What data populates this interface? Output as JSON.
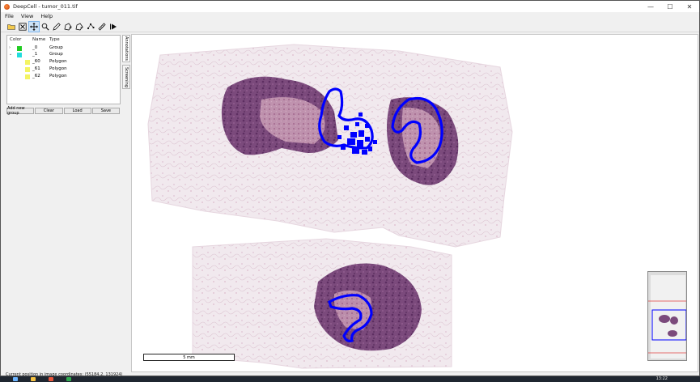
{
  "window": {
    "title": "DeepCell - tumor_011.tif",
    "controls": {
      "minimize": "—",
      "maximize": "☐",
      "close": "✕"
    }
  },
  "menu": [
    "File",
    "View",
    "Help"
  ],
  "toolbar": {
    "tools": [
      "open-folder-icon",
      "close-file-icon",
      "pan-icon",
      "zoom-icon",
      "pen-icon",
      "polygon-add-icon",
      "polygon-remove-icon",
      "point-edit-icon",
      "ruler-icon",
      "play-icon"
    ],
    "active_tool": "pan-icon"
  },
  "annotation_tree": {
    "headers": {
      "color": "Color",
      "name": "Name",
      "type": "Type"
    },
    "rows": [
      {
        "name": "_0",
        "type": "Group",
        "color": "#22cc22",
        "expanded": false
      },
      {
        "name": "_1",
        "type": "Group",
        "color": "#22dddd",
        "expanded": true
      },
      {
        "name": "_60",
        "type": "Polygon",
        "color": "#f4f463"
      },
      {
        "name": "_61",
        "type": "Polygon",
        "color": "#f4f463"
      },
      {
        "name": "_62",
        "type": "Polygon",
        "color": "#f4f463"
      }
    ]
  },
  "panel_buttons": {
    "add_group": "Add new group",
    "clear": "Clear",
    "load": "Load",
    "save": "Save"
  },
  "side_tabs": {
    "annotations": "Annotations",
    "screening": "Screening"
  },
  "viewer": {
    "scalebar_label": "5 mm",
    "annotation_color": "#0000ff",
    "minimap_viewport_color": "#0000ff",
    "minimap_line_color": "#e04040"
  },
  "status": {
    "text": "Current position in image coordinates: (55184.2, 131924)"
  },
  "taskbar": {
    "time": "13:22"
  }
}
